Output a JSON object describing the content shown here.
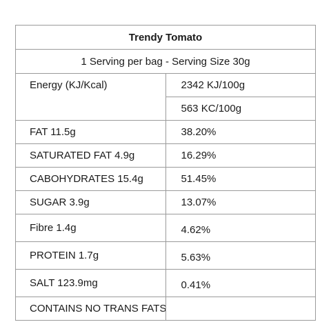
{
  "header": {
    "title": "Trendy Tomato",
    "serving": "1 Serving per bag - Serving Size 30g"
  },
  "rows": [
    {
      "name": "Energy (KJ/Kcal)",
      "value": "2342 KJ/100g"
    },
    {
      "name": "",
      "value": "563 KC/100g"
    },
    {
      "name": "FAT 11.5g",
      "value": "38.20%"
    },
    {
      "name": "SATURATED FAT 4.9g",
      "value": "16.29%"
    },
    {
      "name": "CABOHYDRATES 15.4g",
      "value": "51.45%"
    },
    {
      "name": "SUGAR 3.9g",
      "value": "13.07%"
    },
    {
      "name": "Fibre 1.4g",
      "value": "4.62%"
    },
    {
      "name": "PROTEIN 1.7g",
      "value": "5.63%"
    },
    {
      "name": "SALT 123.9mg",
      "value": "0.41%"
    },
    {
      "name": "CONTAINS NO TRANS FATS",
      "value": ""
    }
  ]
}
